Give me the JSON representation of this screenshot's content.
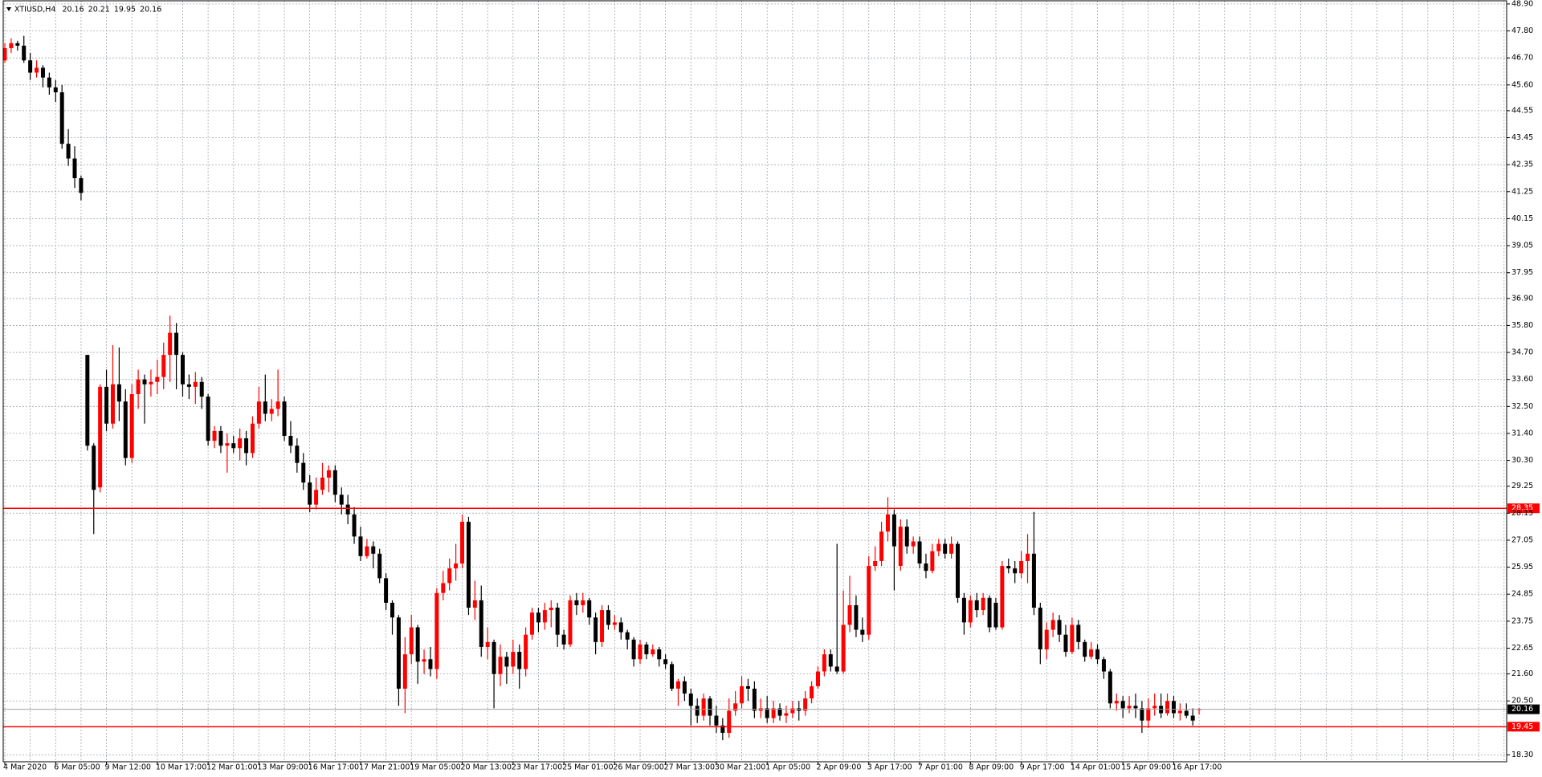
{
  "chart_data": {
    "type": "candlestick",
    "title": "XTIUSD,H4",
    "bull_color": "#ff0000",
    "bear_color": "#000000",
    "categories": [
      "4 Mar 2020",
      null,
      null,
      null,
      null,
      null,
      null,
      null,
      "6 Mar 05:00",
      null,
      null,
      null,
      null,
      null,
      null,
      null,
      "9 Mar 12:00",
      null,
      null,
      null,
      null,
      null,
      null,
      null,
      "10 Mar 17:00",
      null,
      null,
      null,
      null,
      null,
      null,
      null,
      "12 Mar 01:00",
      null,
      null,
      null,
      null,
      null,
      null,
      null,
      "13 Mar 09:00",
      null,
      null,
      null,
      null,
      null,
      null,
      null,
      "16 Mar 17:00",
      null,
      null,
      null,
      null,
      null,
      null,
      null,
      "17 Mar 21:00",
      null,
      null,
      null,
      null,
      null,
      null,
      null,
      "19 Mar 05:00",
      null,
      null,
      null,
      null,
      null,
      null,
      null,
      "20 Mar 13:00",
      null,
      null,
      null,
      null,
      null,
      null,
      null,
      "23 Mar 17:00",
      null,
      null,
      null,
      null,
      null,
      null,
      null,
      "25 Mar 01:00",
      null,
      null,
      null,
      null,
      null,
      null,
      null,
      "26 Mar 09:00",
      null,
      null,
      null,
      null,
      null,
      null,
      null,
      "27 Mar 13:00",
      null,
      null,
      null,
      null,
      null,
      null,
      null,
      "30 Mar 21:00",
      null,
      null,
      null,
      null,
      null,
      null,
      null,
      "1 Apr 05:00",
      null,
      null,
      null,
      null,
      null,
      null,
      null,
      "2 Apr 09:00",
      null,
      null,
      null,
      null,
      null,
      null,
      null,
      "3 Apr 17:00",
      null,
      null,
      null,
      null,
      null,
      null,
      null,
      "7 Apr 01:00",
      null,
      null,
      null,
      null,
      null,
      null,
      null,
      "8 Apr 09:00",
      null,
      null,
      null,
      null,
      null,
      null,
      null,
      "9 Apr 17:00",
      null,
      null,
      null,
      null,
      null,
      null,
      null,
      "14 Apr 01:00",
      null,
      null,
      null,
      null,
      null,
      null,
      null,
      "15 Apr 09:00",
      null,
      null,
      null,
      null,
      null,
      null,
      null,
      "16 Apr 17:00",
      null,
      null,
      null,
      null
    ],
    "open": [
      46.6,
      47.1,
      47.3,
      47.2,
      46.6,
      46.1,
      46.3,
      45.9,
      45.5,
      45.3,
      43.2,
      42.6,
      41.8,
      34.6,
      30.9,
      29.2,
      33.3,
      31.8,
      33.4,
      32.7,
      30.4,
      33.0,
      33.6,
      33.4,
      33.5,
      33.7,
      34.6,
      35.5,
      34.6,
      33.4,
      33.3,
      33.5,
      32.9,
      31.1,
      31.5,
      30.9,
      31.0,
      30.8,
      31.2,
      30.6,
      31.8,
      32.7,
      32.2,
      32.4,
      32.7,
      31.3,
      30.9,
      30.2,
      29.4,
      28.5,
      29.1,
      29.6,
      29.9,
      28.9,
      28.5,
      28.1,
      27.2,
      26.4,
      26.8,
      26.5,
      25.5,
      24.5,
      23.9,
      21.0,
      22.4,
      23.5,
      22.1,
      22.2,
      21.8,
      24.9,
      25.3,
      25.9,
      26.1,
      27.8,
      24.3,
      24.6,
      22.7,
      22.9,
      21.6,
      22.3,
      21.9,
      22.5,
      21.8,
      23.2,
      24.1,
      23.7,
      24.2,
      24.3,
      23.2,
      22.8,
      24.6,
      24.4,
      24.6,
      23.9,
      22.9,
      24.2,
      23.6,
      23.7,
      23.3,
      23.0,
      22.2,
      22.8,
      22.4,
      22.6,
      22.2,
      22.0,
      21.0,
      21.3,
      20.8,
      20.3,
      19.9,
      20.6,
      19.9,
      19.5,
      19.2,
      20.1,
      20.4,
      21.1,
      21.0,
      20.1,
      20.2,
      19.8,
      20.2,
      19.9,
      20.0,
      20.2,
      20.1,
      20.6,
      21.1,
      21.7,
      22.4,
      21.9,
      21.7,
      23.6,
      24.4,
      23.4,
      23.2,
      26.0,
      26.2,
      27.4,
      28.1,
      26.0,
      27.6,
      26.8,
      27.0,
      26.1,
      25.8,
      26.6,
      26.9,
      26.5,
      26.9,
      24.7,
      23.7,
      24.6,
      24.2,
      24.7,
      24.5,
      23.5,
      26.0,
      25.9,
      25.7,
      26.2,
      26.5,
      24.3,
      22.6,
      23.4,
      23.8,
      23.2,
      22.5,
      23.6,
      22.9,
      22.3,
      22.6,
      22.2,
      21.7,
      20.4,
      20.5,
      20.2,
      20.3,
      20.2,
      19.7,
      20.2,
      20.3,
      20.0,
      20.5,
      20.0,
      20.1,
      19.9,
      20.16
    ],
    "high": [
      47.3,
      47.5,
      47.4,
      47.6,
      46.9,
      46.6,
      46.4,
      46.1,
      45.8,
      45.6,
      43.8,
      43.1,
      41.9,
      34.6,
      31.0,
      33.4,
      34.0,
      35.0,
      34.9,
      33.2,
      33.4,
      34.0,
      33.8,
      34.0,
      34.4,
      35.1,
      36.2,
      35.9,
      34.7,
      33.8,
      33.9,
      33.7,
      33.0,
      31.7,
      31.7,
      31.4,
      31.3,
      31.6,
      31.5,
      32.1,
      33.3,
      33.8,
      32.8,
      34.0,
      32.9,
      31.9,
      31.2,
      30.6,
      29.7,
      29.6,
      30.2,
      30.1,
      30.1,
      29.2,
      28.9,
      28.4,
      27.6,
      27.1,
      27.0,
      26.7,
      25.7,
      24.6,
      24.0,
      23.1,
      24.0,
      23.6,
      22.6,
      22.7,
      25.1,
      25.8,
      26.3,
      26.9,
      28.1,
      28.0,
      25.4,
      25.2,
      23.5,
      23.0,
      22.8,
      22.5,
      23.0,
      22.8,
      23.5,
      24.3,
      24.3,
      24.5,
      24.6,
      24.5,
      23.4,
      24.8,
      24.9,
      24.9,
      24.7,
      24.1,
      24.4,
      24.4,
      24.0,
      23.9,
      23.4,
      23.1,
      23.0,
      22.9,
      22.8,
      22.7,
      22.4,
      22.1,
      21.4,
      21.5,
      21.0,
      20.6,
      20.8,
      20.7,
      20.3,
      19.8,
      20.6,
      20.9,
      21.5,
      21.4,
      21.3,
      20.6,
      20.7,
      20.5,
      20.4,
      20.3,
      20.5,
      20.5,
      20.9,
      21.3,
      21.9,
      22.6,
      22.6,
      26.9,
      25.0,
      25.6,
      24.8,
      23.9,
      26.4,
      26.8,
      27.8,
      28.8,
      28.3,
      27.9,
      27.9,
      27.2,
      27.2,
      26.5,
      26.9,
      27.1,
      27.1,
      27.2,
      27.0,
      24.9,
      24.8,
      24.9,
      24.9,
      24.8,
      24.7,
      26.2,
      26.3,
      26.2,
      26.6,
      27.3,
      28.2,
      24.5,
      23.7,
      24.1,
      24.0,
      23.6,
      23.9,
      23.8,
      23.0,
      22.9,
      22.8,
      22.3,
      21.8,
      20.8,
      20.7,
      20.7,
      20.8,
      20.5,
      20.6,
      20.8,
      20.8,
      20.8,
      20.7,
      20.4,
      20.4,
      20.2,
      20.21
    ],
    "low": [
      46.5,
      46.9,
      47.0,
      46.5,
      45.8,
      45.9,
      45.5,
      45.2,
      44.9,
      43.0,
      42.3,
      41.4,
      40.9,
      30.7,
      27.3,
      29.0,
      31.5,
      31.6,
      31.9,
      30.1,
      30.2,
      32.4,
      31.8,
      32.9,
      33.0,
      33.2,
      33.5,
      33.2,
      32.9,
      32.8,
      32.6,
      32.4,
      30.9,
      30.8,
      30.6,
      29.8,
      30.6,
      30.3,
      30.1,
      30.4,
      31.6,
      31.9,
      31.9,
      32.1,
      31.1,
      30.6,
      29.8,
      29.1,
      28.2,
      28.3,
      28.9,
      29.0,
      28.6,
      28.1,
      27.7,
      26.9,
      26.2,
      26.3,
      25.9,
      25.3,
      24.2,
      23.2,
      20.3,
      20.0,
      22.0,
      21.2,
      21.6,
      21.5,
      21.4,
      24.6,
      25.0,
      25.4,
      25.9,
      24.0,
      23.8,
      22.3,
      22.2,
      20.2,
      21.1,
      21.2,
      21.6,
      21.0,
      21.5,
      23.0,
      23.3,
      23.4,
      23.5,
      22.7,
      22.6,
      22.7,
      24.0,
      24.1,
      23.6,
      22.4,
      22.7,
      23.4,
      23.4,
      23.0,
      22.6,
      21.9,
      22.0,
      22.2,
      22.3,
      21.9,
      21.8,
      20.9,
      20.3,
      20.5,
      19.5,
      19.6,
      19.7,
      19.5,
      19.2,
      18.9,
      19.0,
      19.9,
      20.2,
      20.5,
      19.8,
      19.8,
      19.6,
      19.6,
      19.7,
      19.6,
      19.8,
      19.7,
      19.9,
      20.4,
      21.0,
      21.5,
      21.7,
      21.6,
      21.6,
      23.3,
      23.1,
      22.9,
      23.0,
      25.8,
      26.0,
      27.0,
      25.0,
      25.8,
      26.5,
      26.5,
      25.9,
      25.5,
      25.7,
      26.4,
      26.3,
      26.3,
      24.5,
      23.2,
      23.5,
      23.9,
      24.0,
      23.3,
      23.4,
      23.4,
      25.7,
      25.3,
      25.5,
      25.3,
      24.0,
      22.0,
      22.2,
      23.1,
      22.9,
      22.3,
      22.4,
      22.6,
      22.1,
      22.2,
      22.0,
      21.4,
      20.2,
      20.1,
      19.8,
      20.0,
      19.8,
      19.2,
      19.4,
      19.9,
      19.8,
      19.9,
      19.8,
      19.7,
      19.8,
      19.5,
      19.95
    ],
    "close": [
      47.1,
      47.3,
      47.2,
      46.6,
      46.1,
      46.3,
      45.9,
      45.5,
      45.3,
      43.2,
      42.6,
      41.8,
      41.2,
      30.9,
      29.1,
      33.3,
      31.8,
      33.4,
      32.7,
      30.4,
      33.0,
      33.6,
      33.4,
      33.5,
      33.7,
      34.6,
      35.5,
      34.6,
      33.4,
      33.3,
      33.5,
      32.9,
      31.1,
      31.5,
      30.9,
      31.0,
      30.8,
      31.2,
      30.6,
      31.8,
      32.7,
      32.2,
      32.4,
      32.7,
      31.3,
      30.9,
      30.2,
      29.4,
      28.5,
      29.1,
      29.6,
      29.9,
      28.9,
      28.5,
      28.1,
      27.2,
      26.4,
      26.8,
      26.5,
      25.5,
      24.5,
      23.9,
      21.0,
      22.4,
      23.5,
      22.1,
      22.2,
      21.8,
      24.9,
      25.3,
      25.9,
      26.1,
      27.8,
      24.3,
      24.6,
      22.7,
      22.9,
      21.6,
      22.3,
      21.9,
      22.5,
      21.8,
      23.2,
      24.1,
      23.7,
      24.2,
      24.3,
      23.2,
      22.8,
      24.6,
      24.4,
      24.6,
      23.9,
      22.9,
      24.2,
      23.6,
      23.7,
      23.3,
      23.0,
      22.2,
      22.8,
      22.4,
      22.6,
      22.2,
      22.0,
      21.0,
      21.3,
      20.8,
      20.3,
      19.9,
      20.6,
      19.9,
      19.5,
      19.2,
      20.1,
      20.4,
      21.1,
      21.0,
      20.1,
      20.2,
      19.8,
      20.2,
      19.9,
      20.0,
      20.2,
      20.1,
      20.6,
      21.1,
      21.7,
      22.4,
      21.9,
      21.7,
      23.6,
      24.4,
      23.4,
      23.2,
      26.0,
      26.2,
      27.4,
      28.1,
      26.8,
      27.6,
      26.8,
      27.0,
      26.1,
      25.8,
      26.6,
      26.9,
      26.5,
      26.9,
      24.7,
      23.7,
      24.6,
      24.2,
      24.7,
      23.5,
      23.5,
      26.0,
      25.9,
      25.7,
      26.2,
      26.5,
      24.3,
      22.6,
      23.4,
      23.8,
      23.2,
      22.5,
      23.6,
      22.9,
      22.3,
      22.6,
      22.2,
      21.7,
      20.4,
      20.5,
      20.2,
      20.3,
      20.2,
      19.7,
      20.2,
      20.3,
      20.0,
      20.5,
      20.0,
      20.1,
      19.9,
      19.7,
      20.16
    ],
    "ylim": [
      18.3,
      48.9
    ],
    "yticks": [
      {
        "value": 48.9,
        "label": "48.90"
      },
      {
        "value": 47.8,
        "label": "47.80"
      },
      {
        "value": 46.7,
        "label": "46.70"
      },
      {
        "value": 45.6,
        "label": "45.60"
      },
      {
        "value": 44.55,
        "label": "44.55"
      },
      {
        "value": 43.45,
        "label": "43.45"
      },
      {
        "value": 42.35,
        "label": "42.35"
      },
      {
        "value": 41.25,
        "label": "41.25"
      },
      {
        "value": 40.15,
        "label": "40.15"
      },
      {
        "value": 39.05,
        "label": "39.05"
      },
      {
        "value": 37.95,
        "label": "37.95"
      },
      {
        "value": 36.9,
        "label": "36.90"
      },
      {
        "value": 35.8,
        "label": "35.80"
      },
      {
        "value": 34.7,
        "label": "34.70"
      },
      {
        "value": 33.6,
        "label": "33.60"
      },
      {
        "value": 32.5,
        "label": "32.50"
      },
      {
        "value": 31.4,
        "label": "31.40"
      },
      {
        "value": 30.3,
        "label": "30.30"
      },
      {
        "value": 29.25,
        "label": "29.25"
      },
      {
        "value": 28.15,
        "label": "28.15"
      },
      {
        "value": 27.05,
        "label": "27.05"
      },
      {
        "value": 25.95,
        "label": "25.95"
      },
      {
        "value": 24.85,
        "label": "24.85"
      },
      {
        "value": 23.75,
        "label": "23.75"
      },
      {
        "value": 22.65,
        "label": "22.65"
      },
      {
        "value": 21.6,
        "label": "21.60"
      },
      {
        "value": 20.5,
        "label": "20.50"
      },
      {
        "value": 18.3,
        "label": "18.30"
      }
    ],
    "hlines": [
      {
        "value": 28.35,
        "color": "#ff0000"
      },
      {
        "value": 19.45,
        "color": "#ff0000"
      }
    ],
    "grid": true
  }
}
